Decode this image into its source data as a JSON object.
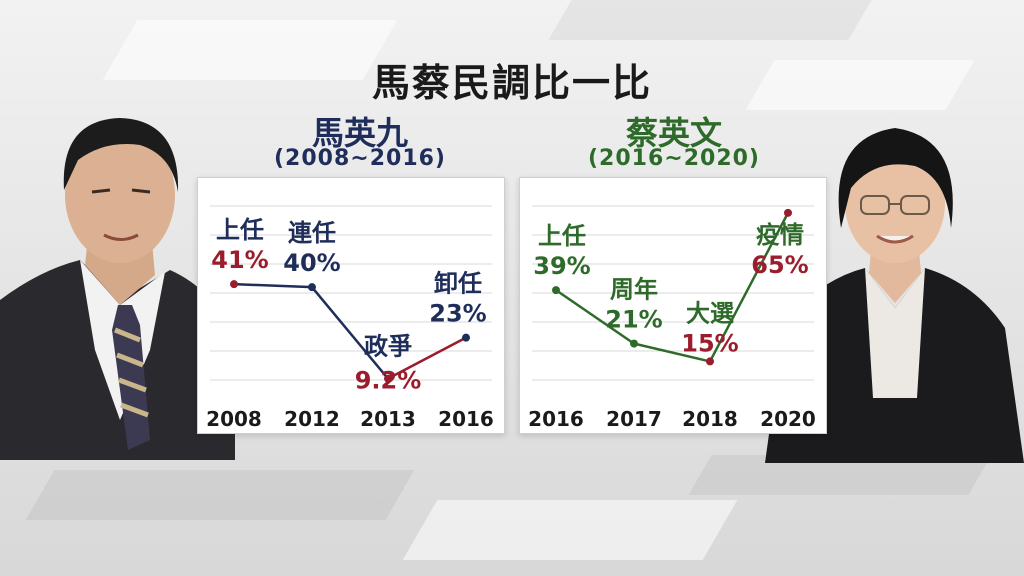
{
  "title": "馬蔡民調比一比",
  "colors": {
    "ma": "#1f2d5a",
    "tsai": "#2e6b2a",
    "highlight": "#9b1c2c",
    "grid": "#d9d9d9"
  },
  "chart_data": [
    {
      "type": "line",
      "name": "馬英九",
      "term": "(2008~2016)",
      "categories": [
        "2008",
        "2012",
        "2013",
        "2016"
      ],
      "points": [
        {
          "label": "上任",
          "value": 41,
          "display": "41%",
          "value_color": "highlight"
        },
        {
          "label": "連任",
          "value": 40,
          "display": "40%",
          "value_color": "series"
        },
        {
          "label": "政爭",
          "value": 9.2,
          "display": "9.2%",
          "value_color": "highlight"
        },
        {
          "label": "卸任",
          "value": 23,
          "display": "23%",
          "value_color": "series"
        }
      ],
      "ylim": [
        0,
        70
      ],
      "grid": true
    },
    {
      "type": "line",
      "name": "蔡英文",
      "term": "(2016~2020)",
      "categories": [
        "2016",
        "2017",
        "2018",
        "2020"
      ],
      "points": [
        {
          "label": "上任",
          "value": 39,
          "display": "39%",
          "value_color": "series"
        },
        {
          "label": "周年",
          "value": 21,
          "display": "21%",
          "value_color": "series"
        },
        {
          "label": "大選",
          "value": 15,
          "display": "15%",
          "value_color": "highlight"
        },
        {
          "label": "疫情",
          "value": 65,
          "display": "65%",
          "value_color": "highlight"
        }
      ],
      "ylim": [
        0,
        70
      ],
      "grid": true
    }
  ]
}
